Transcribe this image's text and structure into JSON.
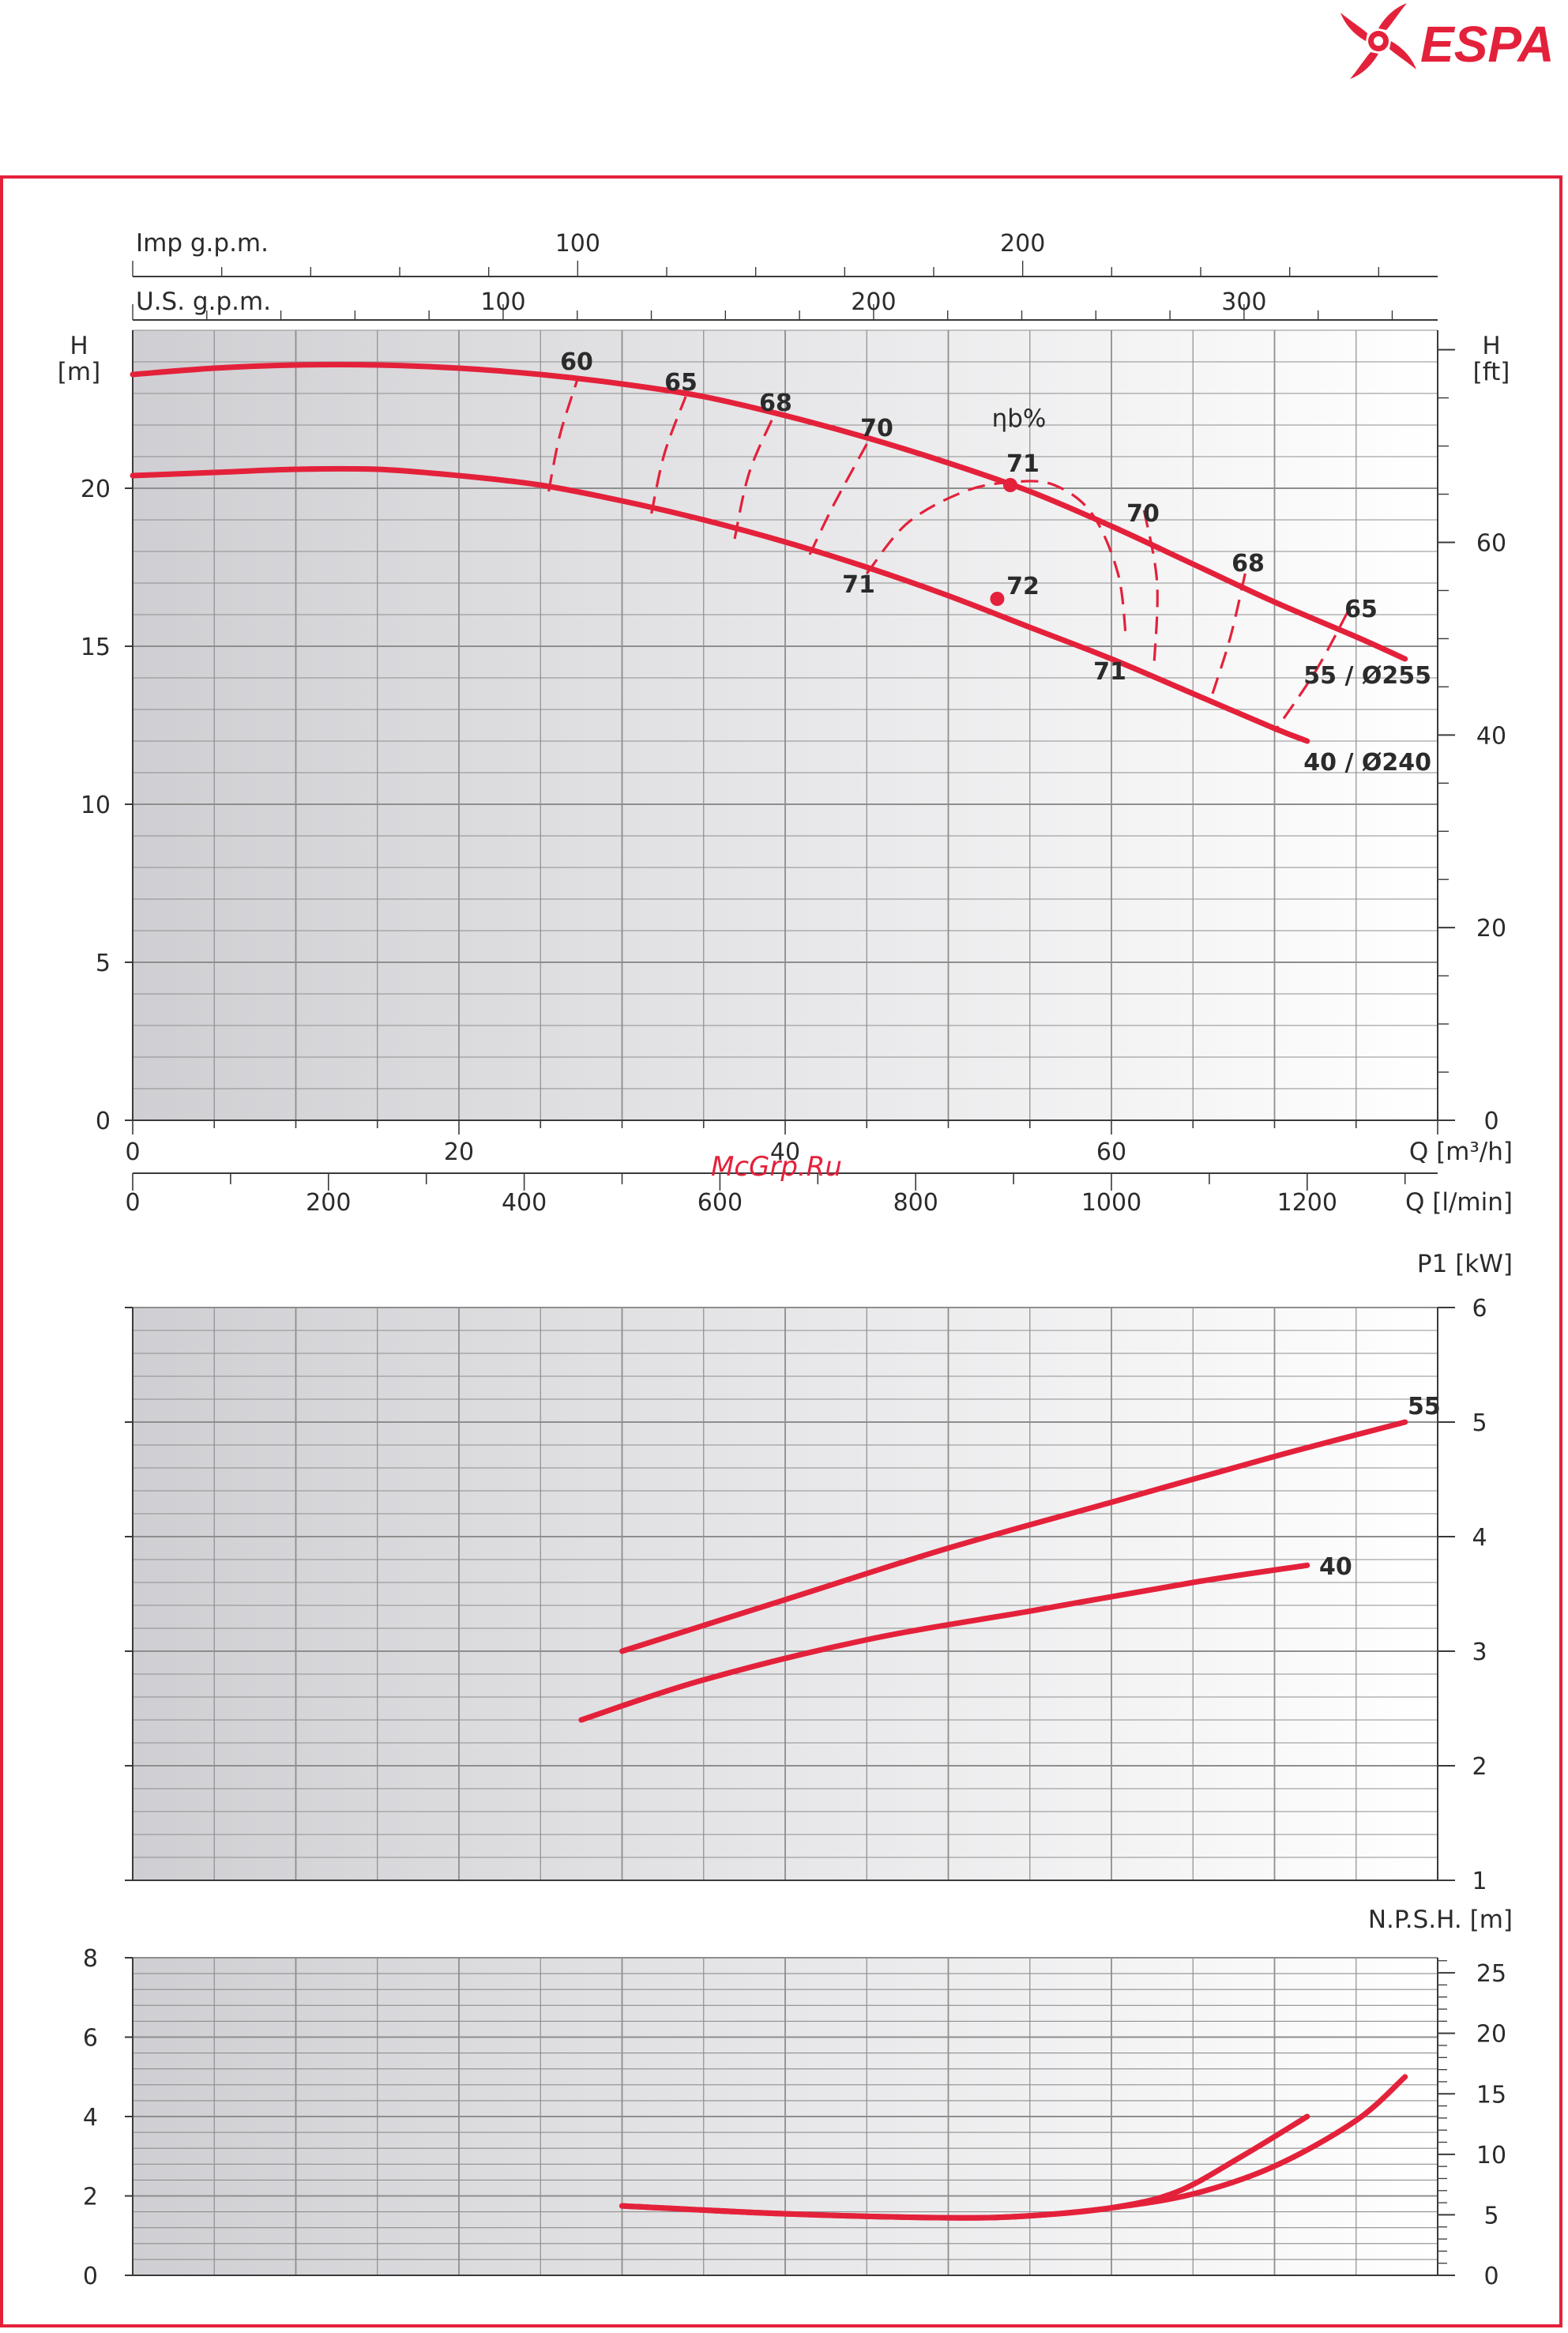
{
  "brand": {
    "name": "ESPA",
    "color": "#e4213a"
  },
  "watermark": "McGrp.Ru",
  "colors": {
    "curve": "#e4213a",
    "grid": "#8e8e8e",
    "axis": "#3a3a3a",
    "bg_dark": "#d2d2d6",
    "bg_light": "#ffffff"
  },
  "chart_data": [
    {
      "id": "head",
      "type": "line",
      "ylabel": "H\n[m]",
      "ylabel_right": "H\n[ft]",
      "xlabel_top1": "Imp g.p.m.",
      "xlabel_top2": "U.S. g.p.m.",
      "xlabel": "Q [m³/h]",
      "xlabel2": "Q [l/min]",
      "xlim": [
        0,
        80
      ],
      "ylim": [
        0,
        25
      ],
      "y_ticks": [
        "0",
        "5",
        "10",
        "15",
        "20"
      ],
      "y_tick_values": [
        0,
        5,
        10,
        15,
        20
      ],
      "y_right_ticks": [
        "0",
        "20",
        "40",
        "60"
      ],
      "y_right_tick_values_ft": [
        0,
        20,
        40,
        60
      ],
      "x_ticks": [
        "0",
        "20",
        "40",
        "60"
      ],
      "x_tick_values": [
        0,
        20,
        40,
        60
      ],
      "x2_ticks": [
        "0",
        "200",
        "400",
        "600",
        "800",
        "1000",
        "1200"
      ],
      "x2_tick_values_lmin": [
        0,
        200,
        400,
        600,
        800,
        1000,
        1200
      ],
      "top1_ticks": [
        "100",
        "200"
      ],
      "top1_tick_values_impgpm": [
        100,
        200
      ],
      "top2_ticks": [
        "100",
        "200",
        "300"
      ],
      "top2_tick_values_usgpm": [
        100,
        200,
        300
      ],
      "efficiency_label": "ηb%",
      "series": [
        {
          "name": "55 / Ø255",
          "x": [
            0,
            5,
            10,
            15,
            20,
            25,
            30,
            35,
            40,
            45,
            50,
            55,
            60,
            65,
            70,
            75,
            78
          ],
          "y": [
            23.6,
            23.8,
            23.9,
            23.9,
            23.8,
            23.6,
            23.3,
            22.9,
            22.3,
            21.6,
            20.8,
            19.9,
            18.8,
            17.6,
            16.4,
            15.3,
            14.6
          ]
        },
        {
          "name": "40 / Ø240",
          "x": [
            0,
            5,
            10,
            15,
            20,
            25,
            30,
            35,
            40,
            45,
            50,
            55,
            60,
            65,
            70,
            72
          ],
          "y": [
            20.4,
            20.5,
            20.6,
            20.6,
            20.4,
            20.1,
            19.6,
            19.0,
            18.3,
            17.5,
            16.6,
            15.6,
            14.6,
            13.5,
            12.4,
            12.0
          ]
        }
      ],
      "efficiency_curves": [
        {
          "label": "60",
          "x": [
            25.5,
            26.2,
            27.3
          ],
          "y": [
            19.9,
            21.7,
            23.5
          ]
        },
        {
          "label": "65",
          "x": [
            31.8,
            32.6,
            33.9
          ],
          "y": [
            19.2,
            21.1,
            22.9
          ]
        },
        {
          "label": "68",
          "x": [
            36.9,
            37.8,
            39.4
          ],
          "y": [
            18.4,
            20.5,
            22.4
          ]
        },
        {
          "label": "70",
          "x": [
            41.5,
            43.0,
            45.0
          ],
          "y": [
            17.9,
            19.5,
            21.4
          ]
        },
        {
          "label": "71",
          "x": [
            45.0,
            47.5,
            51.0,
            54.0,
            56.5,
            58.8,
            60.4,
            60.9
          ],
          "y": [
            17.3,
            18.9,
            19.9,
            20.2,
            20.1,
            19.2,
            17.3,
            15.2
          ]
        },
        {
          "label": "70",
          "x": [
            62.0,
            62.8,
            62.6
          ],
          "y": [
            19.3,
            17.0,
            14.3
          ]
        },
        {
          "label": "68",
          "x": [
            68.2,
            67.3,
            66.2
          ],
          "y": [
            17.3,
            15.3,
            13.5
          ]
        },
        {
          "label": "65",
          "x": [
            74.5,
            72.5,
            70.0
          ],
          "y": [
            16.1,
            14.2,
            12.3
          ]
        }
      ],
      "bep_points": [
        {
          "series": "55 / Ø255",
          "label": "71",
          "x": 53.8,
          "y": 20.1
        },
        {
          "series": "40 / Ø240",
          "label": "72",
          "x": 53.0,
          "y": 16.5
        }
      ],
      "annotations": [
        "60",
        "65",
        "68",
        "70",
        "71",
        "70",
        "68",
        "65",
        "71",
        "72",
        "71"
      ]
    },
    {
      "id": "power",
      "type": "line",
      "ylabel": "P1 [kW]",
      "xlim": [
        0,
        80
      ],
      "ylim": [
        1,
        6
      ],
      "y_ticks": [
        "1",
        "2",
        "3",
        "4",
        "5",
        "6"
      ],
      "y_tick_values": [
        1,
        2,
        3,
        4,
        5,
        6
      ],
      "series": [
        {
          "name": "55",
          "x": [
            30,
            40,
            50,
            60,
            70,
            78
          ],
          "y": [
            3.0,
            3.45,
            3.9,
            4.3,
            4.7,
            5.0
          ]
        },
        {
          "name": "40",
          "x": [
            27.5,
            35,
            45,
            55,
            65,
            72
          ],
          "y": [
            2.4,
            2.75,
            3.1,
            3.35,
            3.6,
            3.75
          ]
        }
      ]
    },
    {
      "id": "npsh",
      "type": "line",
      "ylabel": "N.P.S.H. [m]",
      "xlim": [
        0,
        80
      ],
      "ylim": [
        0,
        8
      ],
      "y_ticks": [
        "0",
        "2",
        "4",
        "6",
        "8"
      ],
      "y_tick_values": [
        0,
        2,
        4,
        6,
        8
      ],
      "y_right_ticks": [
        "0",
        "5",
        "10",
        "15",
        "20",
        "25"
      ],
      "y_right_tick_values_ft": [
        0,
        5,
        10,
        15,
        20,
        25
      ],
      "series": [
        {
          "name": "55",
          "x": [
            30,
            40,
            50,
            55,
            60,
            65,
            70,
            75,
            78
          ],
          "y": [
            1.75,
            1.55,
            1.45,
            1.5,
            1.7,
            2.05,
            2.75,
            3.9,
            5.0
          ]
        },
        {
          "name": "40",
          "x": [
            30,
            40,
            50,
            55,
            60,
            64,
            68,
            72
          ],
          "y": [
            1.75,
            1.55,
            1.45,
            1.5,
            1.7,
            2.1,
            3.0,
            4.0
          ]
        }
      ]
    }
  ]
}
